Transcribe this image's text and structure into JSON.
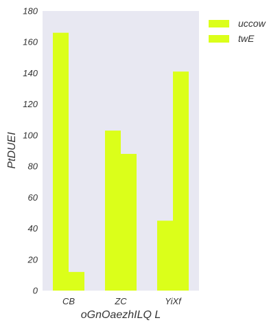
{
  "chart_data": {
    "type": "bar",
    "categories": [
      "CB",
      "ZC",
      "YiXf"
    ],
    "series": [
      {
        "name": "uccow",
        "values": [
          166,
          103,
          45
        ],
        "color": "#dbff1a"
      },
      {
        "name": "twE",
        "values": [
          12,
          88,
          141
        ],
        "color": "#dbff1a"
      }
    ],
    "xlabel": "oGnOaezhILQ L",
    "ylabel": "PtDUEI",
    "ylim": [
      0,
      180
    ],
    "yticks": [
      0,
      20,
      40,
      60,
      80,
      100,
      120,
      140,
      160,
      180
    ],
    "grid": false,
    "legend_position": "outside-top-right",
    "background": "#e8e8f2"
  }
}
